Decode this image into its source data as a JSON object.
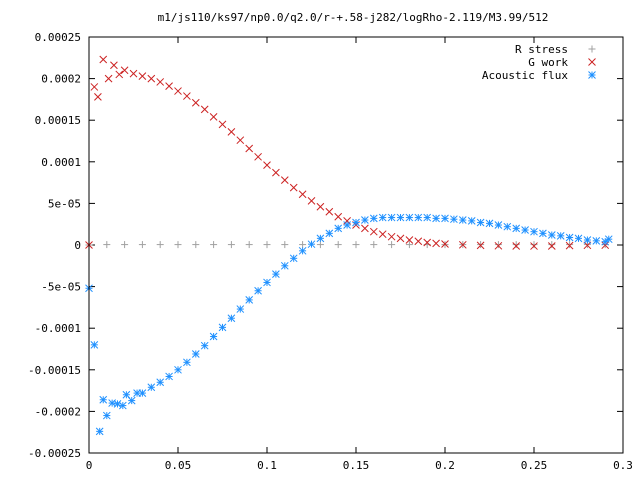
{
  "chart_data": {
    "type": "scatter",
    "title": "m1/js110/ks97/np0.0/q2.0/r-+.58-j282/logRho-2.119/M3.99/512",
    "xlabel": "",
    "ylabel": "",
    "xlim": [
      0,
      0.3
    ],
    "ylim": [
      -0.00025,
      0.00025
    ],
    "x_ticks": [
      0,
      0.05,
      0.1,
      0.15,
      0.2,
      0.25,
      0.3
    ],
    "x_tick_labels": [
      "0",
      "0.05",
      "0.1",
      "0.15",
      "0.2",
      "0.25",
      "0.3"
    ],
    "y_ticks": [
      0.00025,
      0.0002,
      0.00015,
      0.0001,
      5e-05,
      0,
      -5e-05,
      -0.0001,
      -0.00015,
      -0.0002,
      -0.00025
    ],
    "y_tick_labels": [
      "0.00025",
      "0.0002",
      "0.00015",
      "0.0001",
      "5e-05",
      "0",
      "-5e-05",
      "-0.0001",
      "-0.00015",
      "-0.0002",
      "-0.00025"
    ],
    "grid": false,
    "legend_position": "top-right",
    "series": [
      {
        "name": "R stress",
        "marker": "plus",
        "color": "#a0a0a0",
        "x": [
          0,
          0.01,
          0.02,
          0.03,
          0.04,
          0.05,
          0.06,
          0.07,
          0.08,
          0.09,
          0.1,
          0.11,
          0.12,
          0.13,
          0.14,
          0.15,
          0.16,
          0.17,
          0.18,
          0.19,
          0.2,
          0.21,
          0.22,
          0.23,
          0.24,
          0.25,
          0.26,
          0.27,
          0.28,
          0.29
        ],
        "y": [
          0,
          5e-07,
          5e-07,
          5e-07,
          5e-07,
          5e-07,
          5e-07,
          5e-07,
          5e-07,
          5e-07,
          5e-07,
          5e-07,
          5e-07,
          5e-07,
          5e-07,
          5e-07,
          5e-07,
          5e-07,
          5e-07,
          5e-07,
          5e-07,
          5e-07,
          5e-07,
          5e-07,
          5e-07,
          5e-07,
          5e-07,
          5e-07,
          5e-07,
          5e-07
        ]
      },
      {
        "name": "G work",
        "marker": "cross",
        "color": "#cc2222",
        "x": [
          0,
          0.003,
          0.005,
          0.008,
          0.011,
          0.014,
          0.017,
          0.02,
          0.025,
          0.03,
          0.035,
          0.04,
          0.045,
          0.05,
          0.055,
          0.06,
          0.065,
          0.07,
          0.075,
          0.08,
          0.085,
          0.09,
          0.095,
          0.1,
          0.105,
          0.11,
          0.115,
          0.12,
          0.125,
          0.13,
          0.135,
          0.14,
          0.145,
          0.15,
          0.155,
          0.16,
          0.165,
          0.17,
          0.175,
          0.18,
          0.185,
          0.19,
          0.195,
          0.2,
          0.21,
          0.22,
          0.23,
          0.24,
          0.25,
          0.26,
          0.27,
          0.28,
          0.29
        ],
        "y": [
          0,
          0.00019,
          0.000178,
          0.000223,
          0.0002,
          0.000216,
          0.000205,
          0.00021,
          0.000206,
          0.000203,
          0.0002,
          0.000196,
          0.000191,
          0.000185,
          0.000179,
          0.000171,
          0.000163,
          0.000154,
          0.000145,
          0.000136,
          0.000126,
          0.000116,
          0.000106,
          9.6e-05,
          8.7e-05,
          7.8e-05,
          6.9e-05,
          6.1e-05,
          5.3e-05,
          4.6e-05,
          4e-05,
          3.4e-05,
          2.9e-05,
          2.4e-05,
          2e-05,
          1.6e-05,
          1.3e-05,
          1e-05,
          8e-06,
          6e-06,
          4.5e-06,
          3e-06,
          2e-06,
          1.2e-06,
          2e-07,
          -5e-07,
          -1e-06,
          -1.2e-06,
          -1.3e-06,
          -1.2e-06,
          -8e-07,
          -4e-07,
          -2e-07
        ]
      },
      {
        "name": "Acoustic flux",
        "marker": "star",
        "color": "#1e90ff",
        "x": [
          0,
          0.003,
          0.006,
          0.008,
          0.01,
          0.013,
          0.016,
          0.019,
          0.021,
          0.024,
          0.027,
          0.03,
          0.035,
          0.04,
          0.045,
          0.05,
          0.055,
          0.06,
          0.065,
          0.07,
          0.075,
          0.08,
          0.085,
          0.09,
          0.095,
          0.1,
          0.105,
          0.11,
          0.115,
          0.12,
          0.125,
          0.13,
          0.135,
          0.14,
          0.145,
          0.15,
          0.155,
          0.16,
          0.165,
          0.17,
          0.175,
          0.18,
          0.185,
          0.19,
          0.195,
          0.2,
          0.205,
          0.21,
          0.215,
          0.22,
          0.225,
          0.23,
          0.235,
          0.24,
          0.245,
          0.25,
          0.255,
          0.26,
          0.265,
          0.27,
          0.275,
          0.28,
          0.285,
          0.29,
          0.292
        ],
        "y": [
          -5.2e-05,
          -0.00012,
          -0.000224,
          -0.000186,
          -0.000205,
          -0.00019,
          -0.000191,
          -0.000193,
          -0.00018,
          -0.000187,
          -0.000178,
          -0.000178,
          -0.000171,
          -0.000165,
          -0.000158,
          -0.00015,
          -0.000141,
          -0.000131,
          -0.000121,
          -0.00011,
          -9.9e-05,
          -8.8e-05,
          -7.7e-05,
          -6.6e-05,
          -5.5e-05,
          -4.5e-05,
          -3.5e-05,
          -2.5e-05,
          -1.6e-05,
          -7e-06,
          1e-06,
          8e-06,
          1.4e-05,
          2e-05,
          2.4e-05,
          2.7e-05,
          3e-05,
          3.2e-05,
          3.3e-05,
          3.3e-05,
          3.3e-05,
          3.3e-05,
          3.3e-05,
          3.3e-05,
          3.2e-05,
          3.2e-05,
          3.1e-05,
          3e-05,
          2.9e-05,
          2.7e-05,
          2.6e-05,
          2.4e-05,
          2.2e-05,
          2e-05,
          1.8e-05,
          1.6e-05,
          1.4e-05,
          1.2e-05,
          1.1e-05,
          9e-06,
          8e-06,
          6e-06,
          5e-06,
          4e-06,
          7e-06
        ]
      }
    ]
  }
}
